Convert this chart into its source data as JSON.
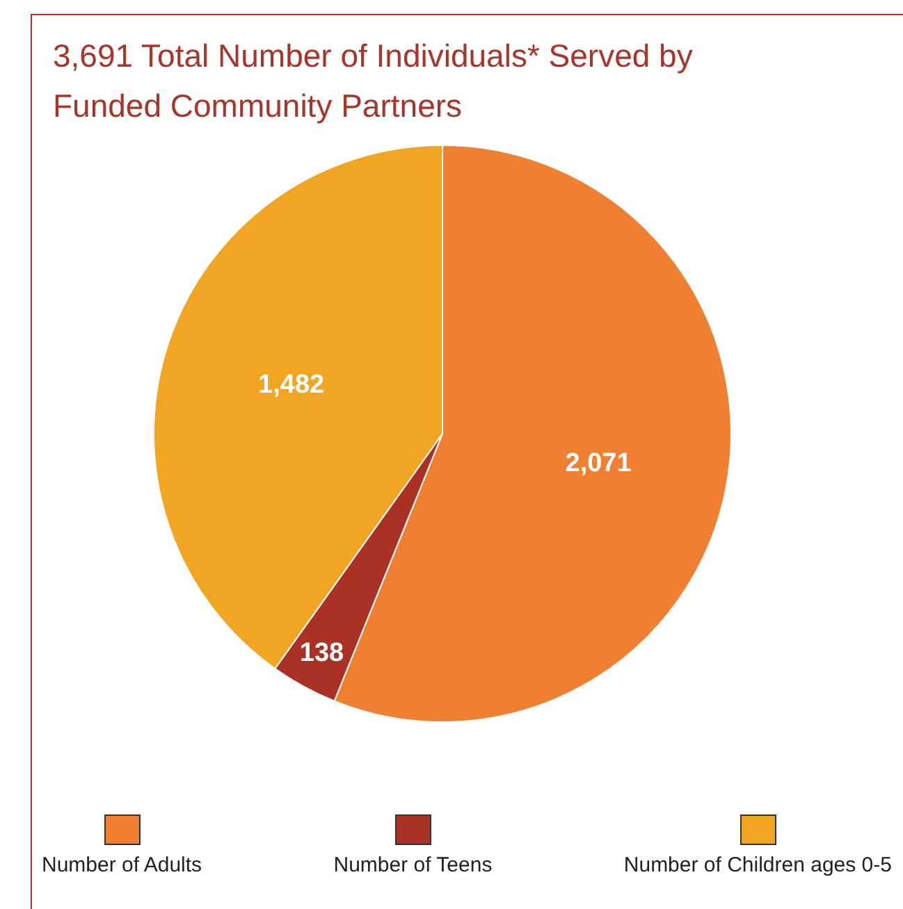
{
  "chart_data": {
    "type": "pie",
    "title": "3,691 Total Number of Individuals* Served by Funded Community Partners",
    "categories": [
      "Number of Adults",
      "Number of Teens",
      "Number of Children ages 0-5"
    ],
    "values": [
      2071,
      138,
      1482
    ],
    "colors": [
      "#ef7f31",
      "#a93224",
      "#f0a623"
    ],
    "value_labels": [
      "2,071",
      "138",
      "1,482"
    ],
    "legend": "bottom"
  }
}
